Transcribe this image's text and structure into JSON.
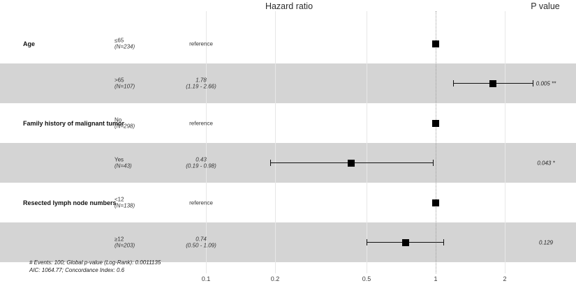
{
  "headers": {
    "hazard_ratio": "Hazard ratio",
    "p_value": "P value"
  },
  "chart_data": {
    "type": "forest",
    "title": "Hazard ratio",
    "p_value_header": "P value",
    "x_axis": {
      "scale": "log",
      "ticks": [
        0.1,
        0.2,
        0.5,
        1,
        2
      ],
      "tick_labels": [
        "0.1",
        "0.2",
        "0.5",
        "1",
        "2"
      ],
      "reference_line": 1
    },
    "rows": [
      {
        "variable": "Age",
        "level": "≤65",
        "n": "(N=234)",
        "estimate": "reference",
        "hr": 1.0,
        "ci_low": null,
        "ci_high": null,
        "ci_text": null,
        "p": "",
        "shaded": false
      },
      {
        "variable": "",
        "level": ">65",
        "n": "(N=107)",
        "estimate": "1.78",
        "hr": 1.78,
        "ci_low": 1.19,
        "ci_high": 2.66,
        "ci_text": "(1.19 - 2.66)",
        "p": "0.005 **",
        "shaded": true
      },
      {
        "variable": "Family history of malignant tumor",
        "level": "No",
        "n": "(N=298)",
        "estimate": "reference",
        "hr": 1.0,
        "ci_low": null,
        "ci_high": null,
        "ci_text": null,
        "p": "",
        "shaded": false
      },
      {
        "variable": "",
        "level": "Yes",
        "n": "(N=43)",
        "estimate": "0.43",
        "hr": 0.43,
        "ci_low": 0.19,
        "ci_high": 0.98,
        "ci_text": "(0.19 - 0.98)",
        "p": "0.043 *",
        "shaded": true
      },
      {
        "variable": "Resected lymph node numbers",
        "level": "<12",
        "n": "(N=138)",
        "estimate": "reference",
        "hr": 1.0,
        "ci_low": null,
        "ci_high": null,
        "ci_text": null,
        "p": "",
        "shaded": false
      },
      {
        "variable": "",
        "level": "≥12",
        "n": "(N=203)",
        "estimate": "0.74",
        "hr": 0.74,
        "ci_low": 0.5,
        "ci_high": 1.09,
        "ci_text": "(0.50 - 1.09)",
        "p": "0.129",
        "shaded": true
      }
    ],
    "footnotes": [
      "# Events: 100; Global p-value (Log-Rank): 0.0011135",
      "AIC: 1064.77; Concordance Index: 0.6"
    ]
  },
  "colors": {
    "band": "#d4d4d4",
    "gridline": "#e7e7e7",
    "reference_dotted": "#9a9a9a",
    "marker": "#000000"
  }
}
